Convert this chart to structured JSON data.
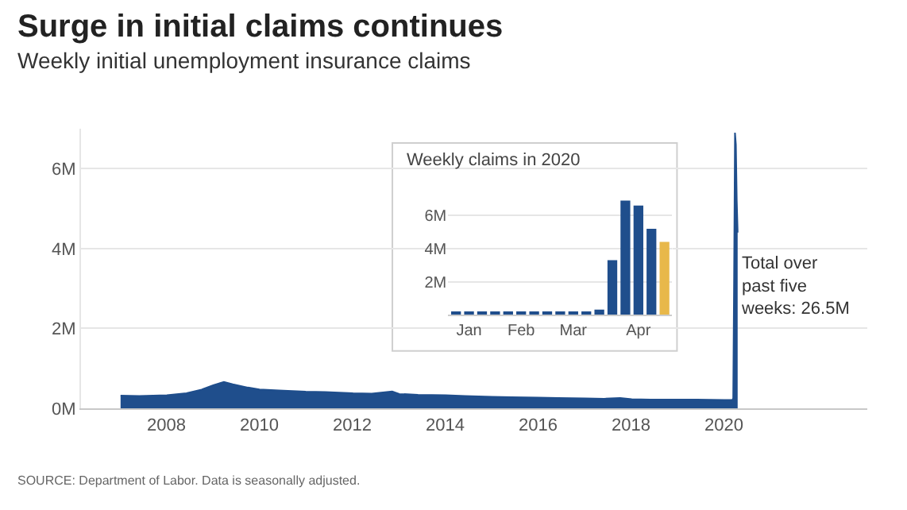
{
  "chart_data": [
    {
      "type": "area",
      "title": "Surge in initial claims continues",
      "subtitle": "Weekly initial unemployment insurance claims",
      "x": [
        "2007-01-06",
        "2007-06-02",
        "2008-01-05",
        "2008-06-07",
        "2008-10-04",
        "2009-01-03",
        "2009-03-28",
        "2009-06-06",
        "2009-10-03",
        "2010-01-02",
        "2010-06-05",
        "2011-01-01",
        "2011-06-04",
        "2012-01-07",
        "2012-06-02",
        "2012-11-10",
        "2013-01-05",
        "2013-06-01",
        "2014-01-04",
        "2014-06-07",
        "2015-01-03",
        "2015-06-06",
        "2016-01-02",
        "2016-06-04",
        "2017-01-07",
        "2017-06-03",
        "2017-10-07",
        "2018-01-06",
        "2018-06-02",
        "2019-01-05",
        "2019-06-01",
        "2020-01-04",
        "2020-03-07",
        "2020-03-14",
        "2020-03-21",
        "2020-03-28",
        "2020-04-04",
        "2020-04-11",
        "2020-04-18"
      ],
      "series": [
        {
          "color": "#1f4e8c",
          "values": [
            0.32,
            0.31,
            0.33,
            0.38,
            0.47,
            0.58,
            0.66,
            0.6,
            0.52,
            0.47,
            0.45,
            0.42,
            0.41,
            0.38,
            0.37,
            0.42,
            0.36,
            0.34,
            0.33,
            0.31,
            0.29,
            0.28,
            0.27,
            0.26,
            0.25,
            0.24,
            0.26,
            0.23,
            0.22,
            0.22,
            0.22,
            0.21,
            0.21,
            0.25,
            3.3,
            6.9,
            6.6,
            5.2,
            4.4
          ]
        }
      ],
      "xlim": [
        "2006-03-01",
        "2023-02-01"
      ],
      "xticks": [
        "2008",
        "2010",
        "2012",
        "2014",
        "2016",
        "2018",
        "2020"
      ],
      "ylim": [
        0,
        7
      ],
      "yticks": [
        {
          "value": 0,
          "label": "0M"
        },
        {
          "value": 2,
          "label": "2M"
        },
        {
          "value": 4,
          "label": "4M"
        },
        {
          "value": 6,
          "label": "6M"
        }
      ],
      "grid": "y",
      "annotations": [
        "Total over past five weeks: 26.5M",
        "SOURCE: Department of Labor. Data is seasonally adjusted."
      ]
    },
    {
      "type": "bar",
      "title": "Weekly claims in 2020",
      "categories": [
        null,
        "Jan",
        null,
        null,
        null,
        "Feb",
        null,
        null,
        null,
        "Mar",
        null,
        null,
        null,
        null,
        "Apr",
        null,
        null
      ],
      "values": [
        0.2,
        0.2,
        0.2,
        0.2,
        0.2,
        0.2,
        0.2,
        0.2,
        0.2,
        0.2,
        0.2,
        0.3,
        3.3,
        6.9,
        6.6,
        5.2,
        4.4
      ],
      "colors": [
        "#1f4e8c",
        "#1f4e8c",
        "#1f4e8c",
        "#1f4e8c",
        "#1f4e8c",
        "#1f4e8c",
        "#1f4e8c",
        "#1f4e8c",
        "#1f4e8c",
        "#1f4e8c",
        "#1f4e8c",
        "#1f4e8c",
        "#1f4e8c",
        "#1f4e8c",
        "#1f4e8c",
        "#1f4e8c",
        "#e8b84a"
      ],
      "ylim": [
        0,
        7.5
      ],
      "yticks": [
        {
          "value": 2,
          "label": "2M"
        },
        {
          "value": 4,
          "label": "4M"
        },
        {
          "value": 6,
          "label": "6M"
        }
      ],
      "grid": "y"
    }
  ]
}
